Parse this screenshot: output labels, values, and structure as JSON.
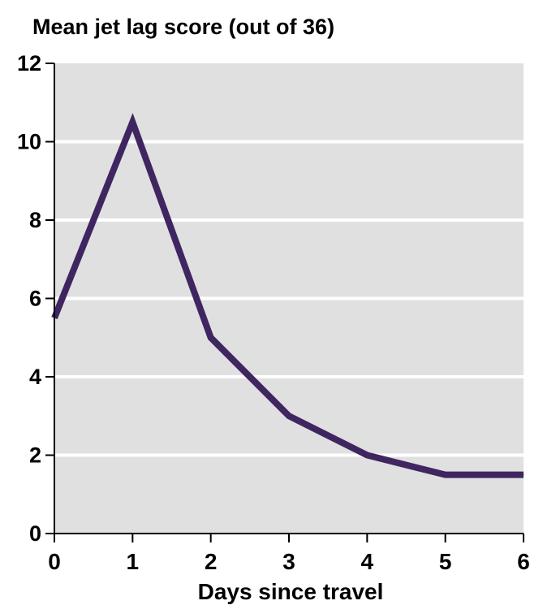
{
  "chart_data": {
    "type": "line",
    "title": "Mean jet lag score (out of 36)",
    "xlabel": "Days since travel",
    "ylabel": "",
    "x": [
      0,
      1,
      2,
      3,
      4,
      5,
      6
    ],
    "series": [
      {
        "name": "",
        "values": [
          5.5,
          10.5,
          5,
          3,
          2,
          1.5,
          1.5
        ]
      }
    ],
    "xlim": [
      0,
      6
    ],
    "ylim": [
      0,
      12
    ],
    "x_ticks": [
      "0",
      "1",
      "2",
      "3",
      "4",
      "5",
      "6"
    ],
    "y_ticks": [
      "0",
      "2",
      "4",
      "6",
      "8",
      "10",
      "12"
    ],
    "grid": true,
    "legend": "none",
    "colors": {
      "plot_background": "#e0e0e0",
      "gridline": "#ffffff",
      "line": "#3f2660",
      "axis": "#000000"
    }
  }
}
